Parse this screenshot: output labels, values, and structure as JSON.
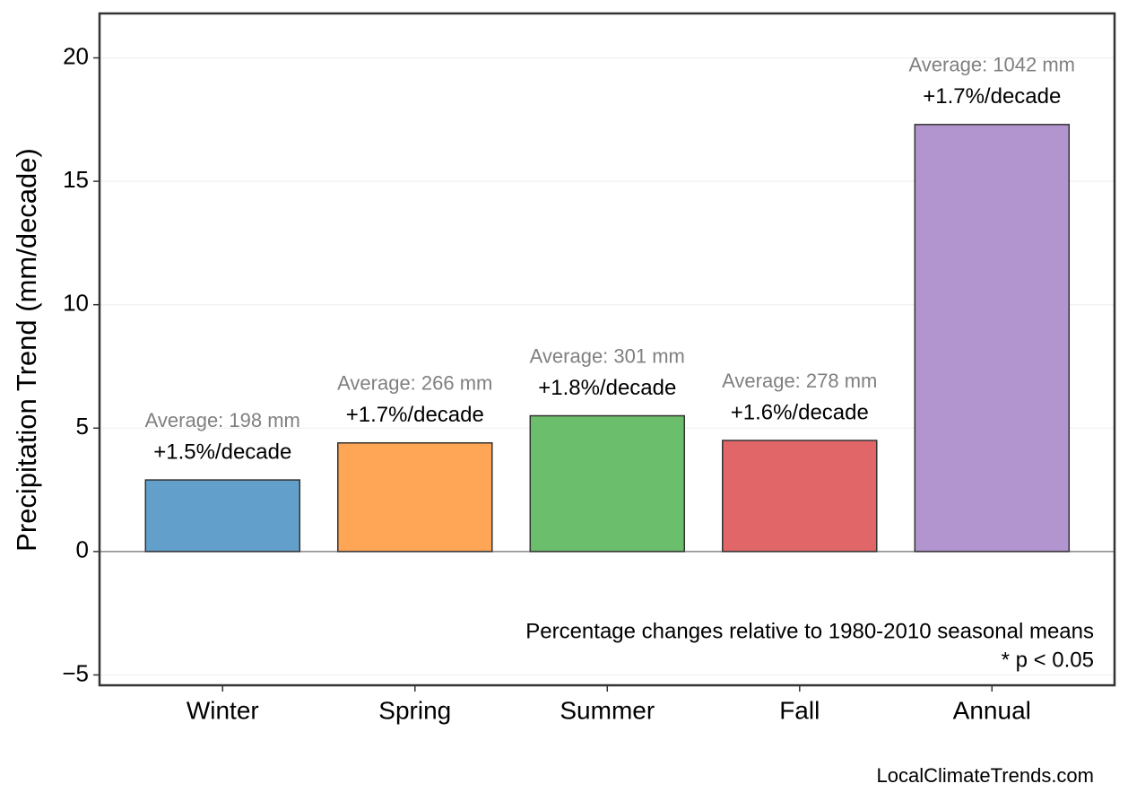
{
  "chart_data": {
    "type": "bar",
    "y_label": "Precipitation Trend (mm/decade)",
    "categories": [
      "Winter",
      "Spring",
      "Summer",
      "Fall",
      "Annual"
    ],
    "values": [
      2.9,
      4.4,
      5.5,
      4.5,
      17.3
    ],
    "colors": [
      "#62a0cb",
      "#ffa556",
      "#6bbe6b",
      "#e06668",
      "#b294ce"
    ],
    "percent_labels": [
      "+1.5%/decade",
      "+1.7%/decade",
      "+1.8%/decade",
      "+1.6%/decade",
      "+1.7%/decade"
    ],
    "average_labels": [
      "Average: 198 mm",
      "Average: 266 mm",
      "Average: 301 mm",
      "Average: 278 mm",
      "Average: 1042 mm"
    ],
    "ylim": [
      -5.42,
      21.8
    ],
    "yticks": [
      {
        "value": -5,
        "label": "−5"
      },
      0,
      5,
      10,
      15,
      20
    ],
    "grid": true,
    "annotations": [
      "Percentage changes relative to 1980-2010 seasonal means",
      "* p < 0.05"
    ],
    "footer": "LocalClimateTrends.com"
  }
}
